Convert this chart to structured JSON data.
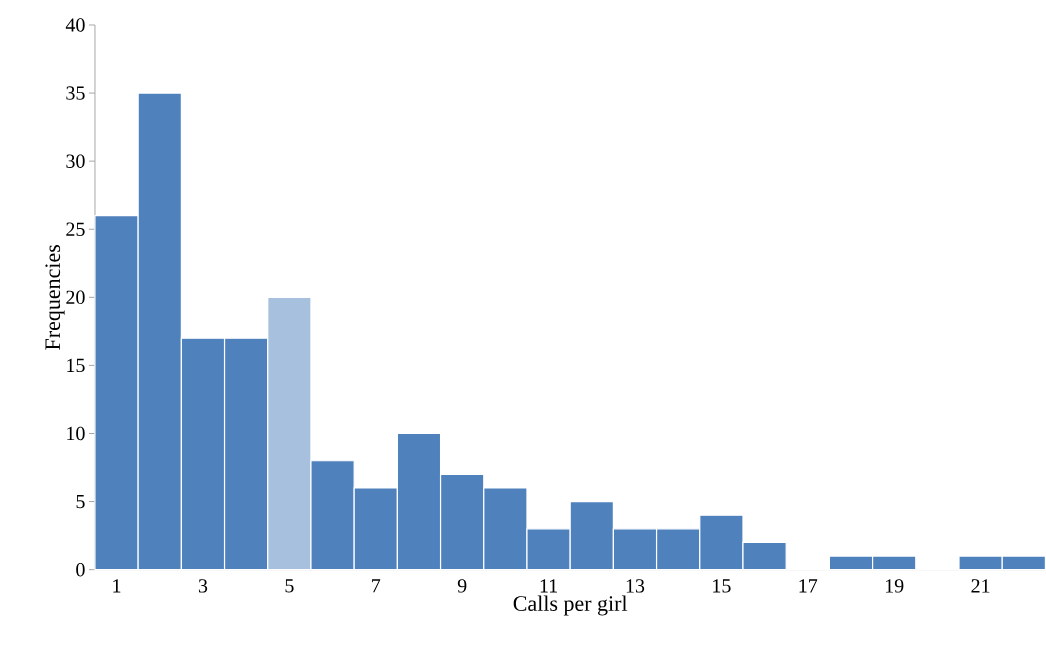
{
  "chart_data": {
    "type": "bar",
    "xlabel": "Calls per girl",
    "ylabel": "Frequencies",
    "categories": [
      "1",
      null,
      "3",
      null,
      "5",
      null,
      "7",
      null,
      "9",
      null,
      "11",
      null,
      "13",
      null,
      "15",
      null,
      "17",
      null,
      "19",
      null,
      "21",
      null
    ],
    "values": [
      26,
      35,
      17,
      17,
      20,
      8,
      6,
      10,
      7,
      6,
      3,
      5,
      3,
      3,
      4,
      2,
      0,
      1,
      1,
      0,
      1,
      1
    ],
    "colors": [
      "#4f81bd",
      "#4f81bd",
      "#4f81bd",
      "#4f81bd",
      "#a7c0de",
      "#4f81bd",
      "#4f81bd",
      "#4f81bd",
      "#4f81bd",
      "#4f81bd",
      "#4f81bd",
      "#4f81bd",
      "#4f81bd",
      "#4f81bd",
      "#4f81bd",
      "#4f81bd",
      "#4f81bd",
      "#4f81bd",
      "#4f81bd",
      "#4f81bd",
      "#4f81bd",
      "#4f81bd"
    ],
    "ylim": [
      0,
      40
    ],
    "yticks": [
      0,
      5,
      10,
      15,
      20,
      25,
      30,
      35,
      40
    ]
  }
}
